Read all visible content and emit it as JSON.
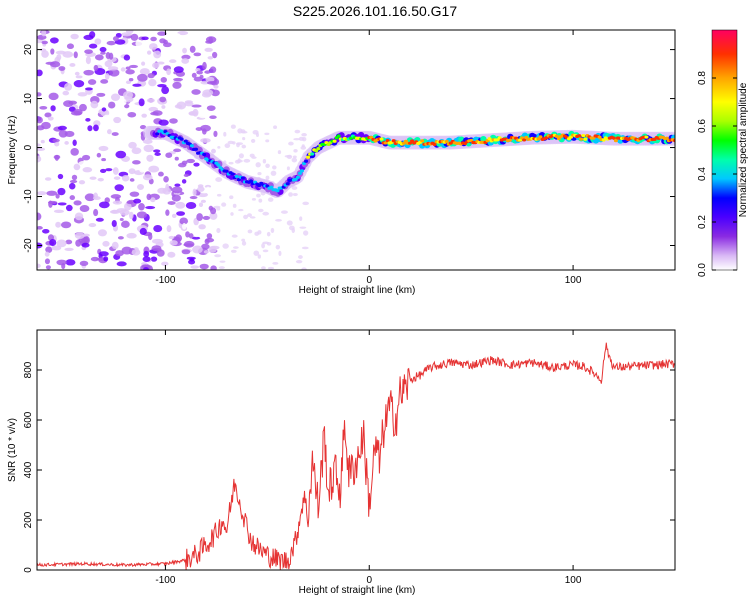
{
  "title": "S225.2026.101.16.50.G17",
  "chart_data": [
    {
      "type": "heatmap",
      "xlabel": "Height of straight line (km)",
      "ylabel": "Frequency (Hz)",
      "xlim": [
        -163,
        150
      ],
      "ylim": [
        -25,
        24
      ],
      "xticks": [
        -100,
        0,
        100
      ],
      "yticks": [
        -20,
        -10,
        0,
        10,
        20
      ],
      "colorbar": {
        "label": "Normalized spectral amplitude",
        "range": [
          0.0,
          1.0
        ],
        "ticks": [
          "0.0",
          "0.2",
          "0.4",
          "0.6",
          "0.8"
        ],
        "colors": [
          "#ffffff",
          "#d9b8f5",
          "#8a2be2",
          "#4b00ff",
          "#0000ff",
          "#00c8ff",
          "#00ffaa",
          "#00ff00",
          "#aaff00",
          "#ffff00",
          "#ffa500",
          "#ff3000",
          "#ff0060"
        ]
      },
      "ridge": {
        "x": [
          -105,
          -100,
          -90,
          -80,
          -70,
          -60,
          -50,
          -45,
          -40,
          -35,
          -30,
          -25,
          -20,
          -15,
          -10,
          -5,
          0,
          10,
          20,
          40,
          60,
          80,
          100,
          120,
          150
        ],
        "y": [
          3,
          3,
          1,
          -2,
          -5,
          -7,
          -8,
          -9,
          -7,
          -6,
          -2,
          0,
          1,
          2,
          2,
          2,
          2,
          1,
          1,
          1,
          1.5,
          2,
          2.2,
          1.8,
          1.8
        ]
      }
    },
    {
      "type": "line",
      "xlabel": "Height of straight line (km)",
      "ylabel": "SNR (10 * v/v)",
      "xlim": [
        -163,
        150
      ],
      "ylim": [
        0,
        960
      ],
      "xticks": [
        -100,
        0,
        100
      ],
      "yticks": [
        0,
        200,
        400,
        600,
        800
      ],
      "series": [
        {
          "name": "SNR",
          "color": "#e53333",
          "x": [
            -163,
            -140,
            -120,
            -100,
            -90,
            -85,
            -80,
            -75,
            -72,
            -70,
            -66,
            -62,
            -58,
            -55,
            -50,
            -45,
            -40,
            -36,
            -32,
            -30,
            -28,
            -25,
            -22,
            -20,
            -17,
            -14,
            -12,
            -10,
            -7,
            -5,
            -3,
            0,
            3,
            5,
            7,
            10,
            13,
            15,
            18,
            20,
            25,
            30,
            40,
            50,
            60,
            70,
            80,
            90,
            100,
            105,
            110,
            114,
            116,
            118,
            120,
            130,
            140,
            150
          ],
          "y": [
            20,
            25,
            20,
            25,
            40,
            60,
            100,
            150,
            200,
            160,
            350,
            230,
            120,
            90,
            60,
            40,
            35,
            120,
            300,
            200,
            450,
            250,
            550,
            300,
            400,
            320,
            600,
            380,
            420,
            460,
            550,
            260,
            500,
            430,
            560,
            650,
            600,
            700,
            730,
            760,
            780,
            810,
            830,
            820,
            840,
            820,
            830,
            810,
            820,
            815,
            790,
            760,
            900,
            850,
            810,
            815,
            820,
            825
          ]
        }
      ]
    }
  ]
}
